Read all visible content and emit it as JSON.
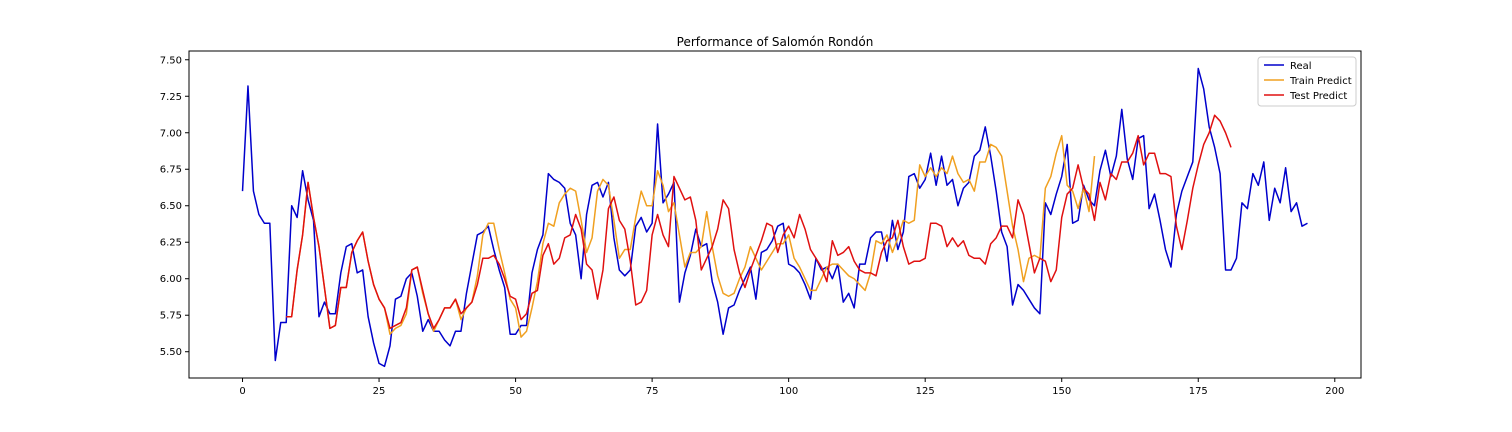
{
  "chart_data": {
    "type": "line",
    "title": "Performance of Salomón Rondón",
    "xlabel": "",
    "ylabel": "",
    "xlim": [
      -9.8,
      204.8
    ],
    "ylim": [
      5.32,
      7.56
    ],
    "xticks": [
      0,
      25,
      50,
      75,
      100,
      125,
      150,
      175,
      200
    ],
    "yticks": [
      5.5,
      5.75,
      6.0,
      6.25,
      6.5,
      6.75,
      7.0,
      7.25,
      7.5
    ],
    "ytick_labels": [
      "5.50",
      "5.75",
      "6.00",
      "6.25",
      "6.50",
      "6.75",
      "7.00",
      "7.25",
      "7.50"
    ],
    "grid": false,
    "legend_position": "top-right",
    "series": [
      {
        "name": "Real",
        "color": "#0000cc",
        "x_start": 0,
        "values": [
          6.6,
          7.32,
          6.6,
          6.44,
          6.38,
          6.38,
          5.44,
          5.7,
          5.7,
          6.5,
          6.42,
          6.74,
          6.54,
          6.4,
          5.74,
          5.84,
          5.76,
          5.76,
          6.04,
          6.22,
          6.24,
          6.04,
          6.06,
          5.74,
          5.56,
          5.42,
          5.4,
          5.54,
          5.86,
          5.88,
          6.0,
          6.04,
          5.88,
          5.64,
          5.72,
          5.64,
          5.64,
          5.58,
          5.54,
          5.64,
          5.64,
          5.9,
          6.1,
          6.3,
          6.32,
          6.36,
          6.2,
          6.06,
          5.94,
          5.62,
          5.62,
          5.68,
          5.68,
          6.04,
          6.2,
          6.3,
          6.72,
          6.68,
          6.66,
          6.62,
          6.38,
          6.3,
          6.0,
          6.44,
          6.64,
          6.66,
          6.56,
          6.66,
          6.28,
          6.06,
          6.02,
          6.06,
          6.36,
          6.42,
          6.32,
          6.38,
          7.06,
          6.52,
          6.58,
          6.66,
          5.84,
          6.04,
          6.16,
          6.34,
          6.22,
          6.24,
          5.98,
          5.84,
          5.62,
          5.8,
          5.82,
          5.92,
          6.0,
          6.08,
          5.86,
          6.18,
          6.2,
          6.26,
          6.36,
          6.38,
          6.1,
          6.08,
          6.04,
          5.96,
          5.86,
          6.14,
          6.06,
          6.08,
          6.0,
          6.1,
          5.84,
          5.9,
          5.8,
          6.1,
          6.1,
          6.28,
          6.32,
          6.32,
          6.12,
          6.4,
          6.2,
          6.32,
          6.7,
          6.72,
          6.62,
          6.68,
          6.86,
          6.64,
          6.84,
          6.64,
          6.68,
          6.5,
          6.62,
          6.66,
          6.84,
          6.88,
          7.04,
          6.84,
          6.6,
          6.32,
          6.22,
          5.82,
          5.96,
          5.92,
          5.86,
          5.8,
          5.76,
          6.52,
          6.44,
          6.58,
          6.7,
          6.92,
          6.38,
          6.4,
          6.64,
          6.54,
          6.5,
          6.74,
          6.88,
          6.7,
          6.84,
          7.16,
          6.82,
          6.68,
          6.96,
          6.98,
          6.48,
          6.58,
          6.4,
          6.2,
          6.08,
          6.44,
          6.6,
          6.7,
          6.8,
          7.44,
          7.3,
          7.04,
          6.9,
          6.72,
          6.06,
          6.06,
          6.14,
          6.52,
          6.48,
          6.72,
          6.64,
          6.8,
          6.4,
          6.62,
          6.52,
          6.76,
          6.46,
          6.52,
          6.36,
          6.38
        ]
      },
      {
        "name": "Train Predict",
        "color": "#f0a020",
        "x_start": 8,
        "values": [
          5.74,
          5.74,
          6.06,
          6.3,
          6.66,
          6.42,
          6.22,
          5.94,
          5.66,
          5.68,
          5.94,
          5.94,
          6.18,
          6.26,
          6.32,
          6.12,
          5.96,
          5.86,
          5.8,
          5.62,
          5.66,
          5.68,
          5.76,
          6.06,
          6.08,
          5.9,
          5.76,
          5.64,
          5.72,
          5.8,
          5.8,
          5.86,
          5.72,
          5.8,
          5.84,
          6.02,
          6.3,
          6.38,
          6.38,
          6.2,
          6.04,
          5.86,
          5.8,
          5.6,
          5.64,
          5.8,
          5.98,
          6.24,
          6.38,
          6.36,
          6.52,
          6.58,
          6.62,
          6.6,
          6.4,
          6.18,
          6.28,
          6.6,
          6.68,
          6.64,
          6.4,
          6.14,
          6.2,
          6.2,
          6.42,
          6.6,
          6.5,
          6.5,
          6.74,
          6.64,
          6.46,
          6.52,
          6.3,
          6.08,
          6.18,
          6.18,
          6.22,
          6.46,
          6.22,
          6.02,
          5.9,
          5.88,
          5.9,
          6.0,
          6.08,
          6.22,
          6.14,
          6.06,
          6.12,
          6.18,
          6.24,
          6.24,
          6.3,
          6.14,
          6.08,
          6.0,
          5.92,
          5.92,
          6.0,
          6.08,
          6.1,
          6.1,
          6.06,
          6.02,
          6.0,
          5.96,
          5.92,
          6.04,
          6.26,
          6.24,
          6.3,
          6.18,
          6.28,
          6.4,
          6.38,
          6.4,
          6.78,
          6.7,
          6.76,
          6.7,
          6.76,
          6.72,
          6.84,
          6.72,
          6.66,
          6.68,
          6.6,
          6.8,
          6.8,
          6.92,
          6.9,
          6.84,
          6.6,
          6.36,
          6.2,
          5.98,
          6.14,
          6.16,
          6.14,
          6.62,
          6.7,
          6.86,
          6.98,
          6.64,
          6.6,
          6.48,
          6.62,
          6.46,
          6.84
        ]
      },
      {
        "name": "Test Predict",
        "color": "#e01010",
        "x_start": 8,
        "values": [
          5.74,
          5.74,
          6.06,
          6.3,
          6.66,
          6.42,
          6.22,
          5.94,
          5.66,
          5.68,
          5.94,
          5.94,
          6.18,
          6.26,
          6.32,
          6.12,
          5.96,
          5.86,
          5.8,
          5.66,
          5.68,
          5.7,
          5.8,
          6.06,
          6.08,
          5.92,
          5.76,
          5.66,
          5.72,
          5.8,
          5.8,
          5.86,
          5.76,
          5.8,
          5.84,
          5.96,
          6.14,
          6.14,
          6.16,
          6.1,
          6.0,
          5.88,
          5.86,
          5.72,
          5.76,
          5.9,
          5.92,
          6.16,
          6.24,
          6.1,
          6.14,
          6.28,
          6.3,
          6.44,
          6.34,
          6.1,
          6.06,
          5.86,
          6.06,
          6.48,
          6.56,
          6.4,
          6.34,
          6.12,
          5.82,
          5.84,
          5.92,
          6.3,
          6.44,
          6.3,
          6.22,
          6.7,
          6.62,
          6.54,
          6.56,
          6.4,
          6.06,
          6.14,
          6.22,
          6.34,
          6.54,
          6.48,
          6.2,
          6.04,
          5.94,
          6.06,
          6.16,
          6.26,
          6.38,
          6.36,
          6.18,
          6.3,
          6.36,
          6.28,
          6.44,
          6.34,
          6.2,
          6.14,
          6.08,
          5.98,
          6.26,
          6.16,
          6.18,
          6.22,
          6.12,
          6.06,
          6.04,
          6.04,
          6.02,
          6.18,
          6.26,
          6.28,
          6.4,
          6.22,
          6.1,
          6.12,
          6.12,
          6.14,
          6.38,
          6.38,
          6.36,
          6.22,
          6.28,
          6.22,
          6.26,
          6.16,
          6.14,
          6.14,
          6.1,
          6.24,
          6.28,
          6.36,
          6.36,
          6.28,
          6.54,
          6.44,
          6.24,
          6.04,
          6.14,
          6.12,
          5.98,
          6.06,
          6.42,
          6.58,
          6.62,
          6.78,
          6.62,
          6.58,
          6.4,
          6.66,
          6.54,
          6.72,
          6.68,
          6.8,
          6.8,
          6.86,
          6.98,
          6.78,
          6.86,
          6.86,
          6.72,
          6.72,
          6.7,
          6.36,
          6.2,
          6.4,
          6.62,
          6.78,
          6.92,
          7.0,
          7.12,
          7.08,
          7.0,
          6.9
        ]
      }
    ]
  }
}
